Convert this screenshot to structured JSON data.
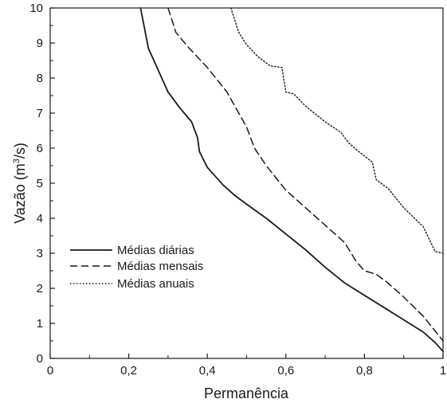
{
  "chart_data": {
    "type": "line",
    "xlabel": "Permanência",
    "ylabel_main": "Vazão (m",
    "ylabel_sup": "3",
    "ylabel_end": "/s)",
    "xlim": [
      0,
      1
    ],
    "ylim": [
      0,
      10
    ],
    "grid": false,
    "legend_position": "bottom-left",
    "x_ticks": [
      0,
      0.2,
      0.4,
      0.6,
      0.8,
      1
    ],
    "x_tick_labels": [
      "0",
      "0,2",
      "0,4",
      "0,6",
      "0,8",
      "1"
    ],
    "y_ticks": [
      0,
      1,
      2,
      3,
      4,
      5,
      6,
      7,
      8,
      9,
      10
    ],
    "y_tick_labels": [
      "0",
      "1",
      "2",
      "3",
      "4",
      "5",
      "6",
      "7",
      "8",
      "9",
      "10"
    ],
    "series": [
      {
        "name": "Médias diárias",
        "style": "solid",
        "color": "#1a1a1a",
        "points": [
          [
            0.23,
            10
          ],
          [
            0.25,
            8.85
          ],
          [
            0.28,
            8.1
          ],
          [
            0.3,
            7.6
          ],
          [
            0.33,
            7.15
          ],
          [
            0.36,
            6.75
          ],
          [
            0.375,
            6.3
          ],
          [
            0.38,
            5.9
          ],
          [
            0.4,
            5.45
          ],
          [
            0.44,
            4.95
          ],
          [
            0.47,
            4.65
          ],
          [
            0.5,
            4.4
          ],
          [
            0.55,
            4.0
          ],
          [
            0.6,
            3.55
          ],
          [
            0.65,
            3.1
          ],
          [
            0.7,
            2.6
          ],
          [
            0.75,
            2.15
          ],
          [
            0.8,
            1.8
          ],
          [
            0.85,
            1.45
          ],
          [
            0.9,
            1.1
          ],
          [
            0.95,
            0.75
          ],
          [
            0.98,
            0.45
          ],
          [
            1.0,
            0.2
          ]
        ]
      },
      {
        "name": "Médias mensais",
        "style": "dashed",
        "color": "#1a1a1a",
        "points": [
          [
            0.3,
            10
          ],
          [
            0.32,
            9.3
          ],
          [
            0.35,
            8.9
          ],
          [
            0.4,
            8.3
          ],
          [
            0.45,
            7.6
          ],
          [
            0.5,
            6.6
          ],
          [
            0.52,
            6.0
          ],
          [
            0.55,
            5.5
          ],
          [
            0.6,
            4.8
          ],
          [
            0.65,
            4.3
          ],
          [
            0.7,
            3.8
          ],
          [
            0.75,
            3.3
          ],
          [
            0.78,
            2.75
          ],
          [
            0.8,
            2.5
          ],
          [
            0.83,
            2.4
          ],
          [
            0.86,
            2.15
          ],
          [
            0.9,
            1.75
          ],
          [
            0.95,
            1.2
          ],
          [
            1.0,
            0.5
          ]
        ]
      },
      {
        "name": "Médias anuais",
        "style": "dotted",
        "color": "#1a1a1a",
        "points": [
          [
            0.46,
            10
          ],
          [
            0.48,
            9.3
          ],
          [
            0.5,
            8.95
          ],
          [
            0.53,
            8.6
          ],
          [
            0.56,
            8.35
          ],
          [
            0.59,
            8.3
          ],
          [
            0.6,
            7.6
          ],
          [
            0.62,
            7.55
          ],
          [
            0.65,
            7.2
          ],
          [
            0.7,
            6.75
          ],
          [
            0.74,
            6.45
          ],
          [
            0.76,
            6.15
          ],
          [
            0.78,
            5.95
          ],
          [
            0.82,
            5.6
          ],
          [
            0.83,
            5.1
          ],
          [
            0.86,
            4.85
          ],
          [
            0.9,
            4.3
          ],
          [
            0.95,
            3.75
          ],
          [
            0.98,
            3.05
          ],
          [
            1.0,
            3.0
          ]
        ]
      }
    ]
  }
}
